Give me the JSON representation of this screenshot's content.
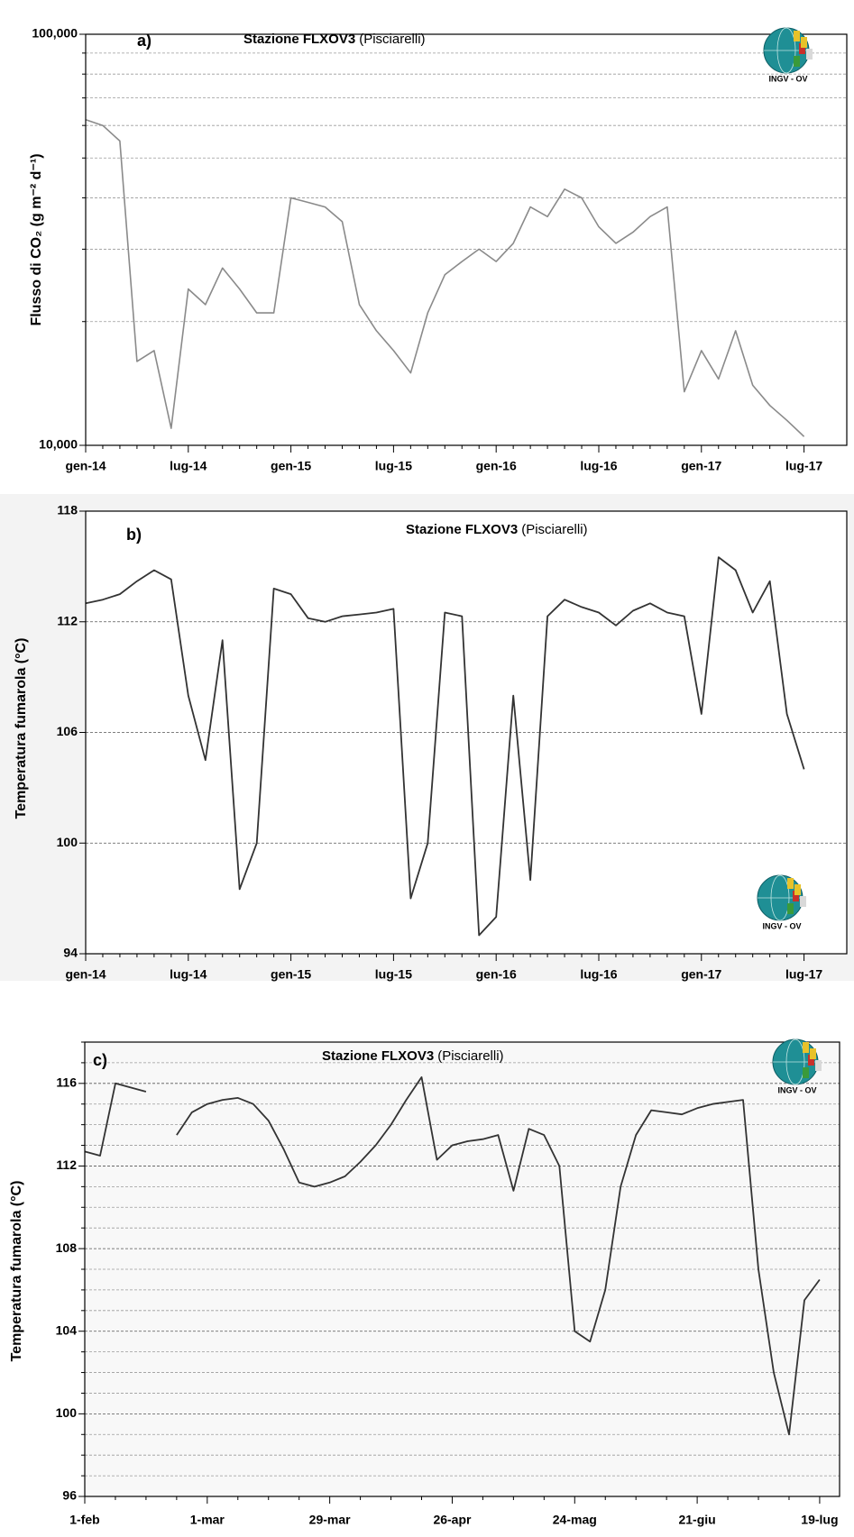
{
  "chart_data": [
    {
      "type": "line",
      "panel": "a)",
      "title": "Stazione FLXOV3",
      "subtitle": "(Pisciarelli)",
      "logo": "INGV - OV",
      "ylabel": "Flusso di CO₂ (g m⁻² d⁻¹)",
      "log": true,
      "color": "#8a8a8a",
      "grid": true,
      "categories": [
        "gen-14",
        null,
        null,
        null,
        null,
        null,
        "lug-14",
        null,
        null,
        null,
        null,
        null,
        "gen-15",
        null,
        null,
        null,
        null,
        null,
        "lug-15",
        null,
        null,
        null,
        null,
        null,
        "gen-16",
        null,
        null,
        null,
        null,
        null,
        "lug-16",
        null,
        null,
        null,
        null,
        null,
        "gen-17",
        null,
        null,
        null,
        null,
        null,
        "lug-17"
      ],
      "values": [
        62000,
        60000,
        55000,
        16000,
        17000,
        11000,
        24000,
        22000,
        27000,
        24000,
        21000,
        21000,
        40000,
        39000,
        38000,
        35000,
        22000,
        19000,
        17000,
        15000,
        21000,
        26000,
        28000,
        30000,
        28000,
        31000,
        38000,
        36000,
        42000,
        40000,
        34000,
        31000,
        33000,
        36000,
        38000,
        13500,
        17000,
        14500,
        19000,
        14000,
        12500,
        11500,
        10500
      ],
      "ylim": [
        10000,
        100000
      ],
      "yticks": [
        {
          "value": 10000,
          "label": "10,000"
        },
        {
          "value": 100000,
          "label": "100,000"
        }
      ],
      "yminor": [
        20000,
        30000,
        40000,
        50000,
        60000,
        70000,
        80000,
        90000
      ]
    },
    {
      "type": "line",
      "panel": "b)",
      "title": "Stazione FLXOV3",
      "subtitle": "(Pisciarelli)",
      "logo": "INGV - OV",
      "ylabel": "Temperatura fumarola  (°C)",
      "log": false,
      "color": "#333333",
      "grid": true,
      "categories": [
        "gen-14",
        null,
        null,
        null,
        null,
        null,
        "lug-14",
        null,
        null,
        null,
        null,
        null,
        "gen-15",
        null,
        null,
        null,
        null,
        null,
        "lug-15",
        null,
        null,
        null,
        null,
        null,
        "gen-16",
        null,
        null,
        null,
        null,
        null,
        "lug-16",
        null,
        null,
        null,
        null,
        null,
        "gen-17",
        null,
        null,
        null,
        null,
        null,
        "lug-17"
      ],
      "values": [
        113.0,
        113.2,
        113.5,
        114.2,
        114.8,
        114.3,
        108.0,
        104.5,
        111.0,
        97.5,
        100.0,
        113.8,
        113.5,
        112.2,
        112.0,
        112.3,
        112.4,
        112.5,
        112.7,
        97.0,
        100.0,
        112.5,
        112.3,
        95.0,
        96.0,
        108.0,
        98.0,
        112.3,
        113.2,
        112.8,
        112.5,
        111.8,
        112.6,
        113.0,
        112.5,
        112.3,
        107.0,
        115.5,
        114.8,
        112.5,
        114.2,
        107.0,
        104.0
      ],
      "ylim": [
        94,
        118
      ],
      "yticks": [
        94,
        100,
        106,
        112,
        118
      ],
      "yminor": []
    },
    {
      "type": "line",
      "panel": "c)",
      "title": "Stazione FLXOV3",
      "subtitle": "(Pisciarelli)",
      "logo": "INGV - OV",
      "ylabel": "Temperatura fumarola  (°C)",
      "log": false,
      "color": "#333333",
      "grid": true,
      "categories": [
        "1-feb",
        null,
        null,
        null,
        null,
        null,
        null,
        null,
        "1-mar",
        null,
        null,
        null,
        null,
        null,
        null,
        null,
        "29-mar",
        null,
        null,
        null,
        null,
        null,
        null,
        null,
        "26-apr",
        null,
        null,
        null,
        null,
        null,
        null,
        null,
        "24-mag",
        null,
        null,
        null,
        null,
        null,
        null,
        null,
        "21-giu",
        null,
        null,
        null,
        null,
        null,
        null,
        null,
        "19-lug"
      ],
      "values": [
        112.7,
        112.5,
        116.0,
        115.8,
        115.6,
        null,
        113.5,
        114.6,
        115.0,
        115.2,
        115.3,
        115.0,
        114.2,
        112.8,
        111.2,
        111.0,
        111.2,
        111.5,
        112.2,
        113.0,
        114.0,
        115.2,
        116.3,
        112.3,
        113.0,
        113.2,
        113.3,
        113.5,
        110.8,
        113.8,
        113.5,
        112.0,
        104.0,
        103.5,
        106.0,
        111.0,
        113.5,
        114.7,
        114.6,
        114.5,
        114.8,
        115.0,
        115.1,
        115.2,
        107.0,
        102.0,
        99.0,
        105.5,
        106.5
      ],
      "ylim": [
        96,
        118
      ],
      "yticks": [
        96,
        100,
        104,
        108,
        112,
        116
      ],
      "yminor": [
        97,
        98,
        99,
        101,
        102,
        103,
        105,
        106,
        107,
        109,
        110,
        111,
        113,
        114,
        115,
        117,
        118
      ]
    }
  ]
}
